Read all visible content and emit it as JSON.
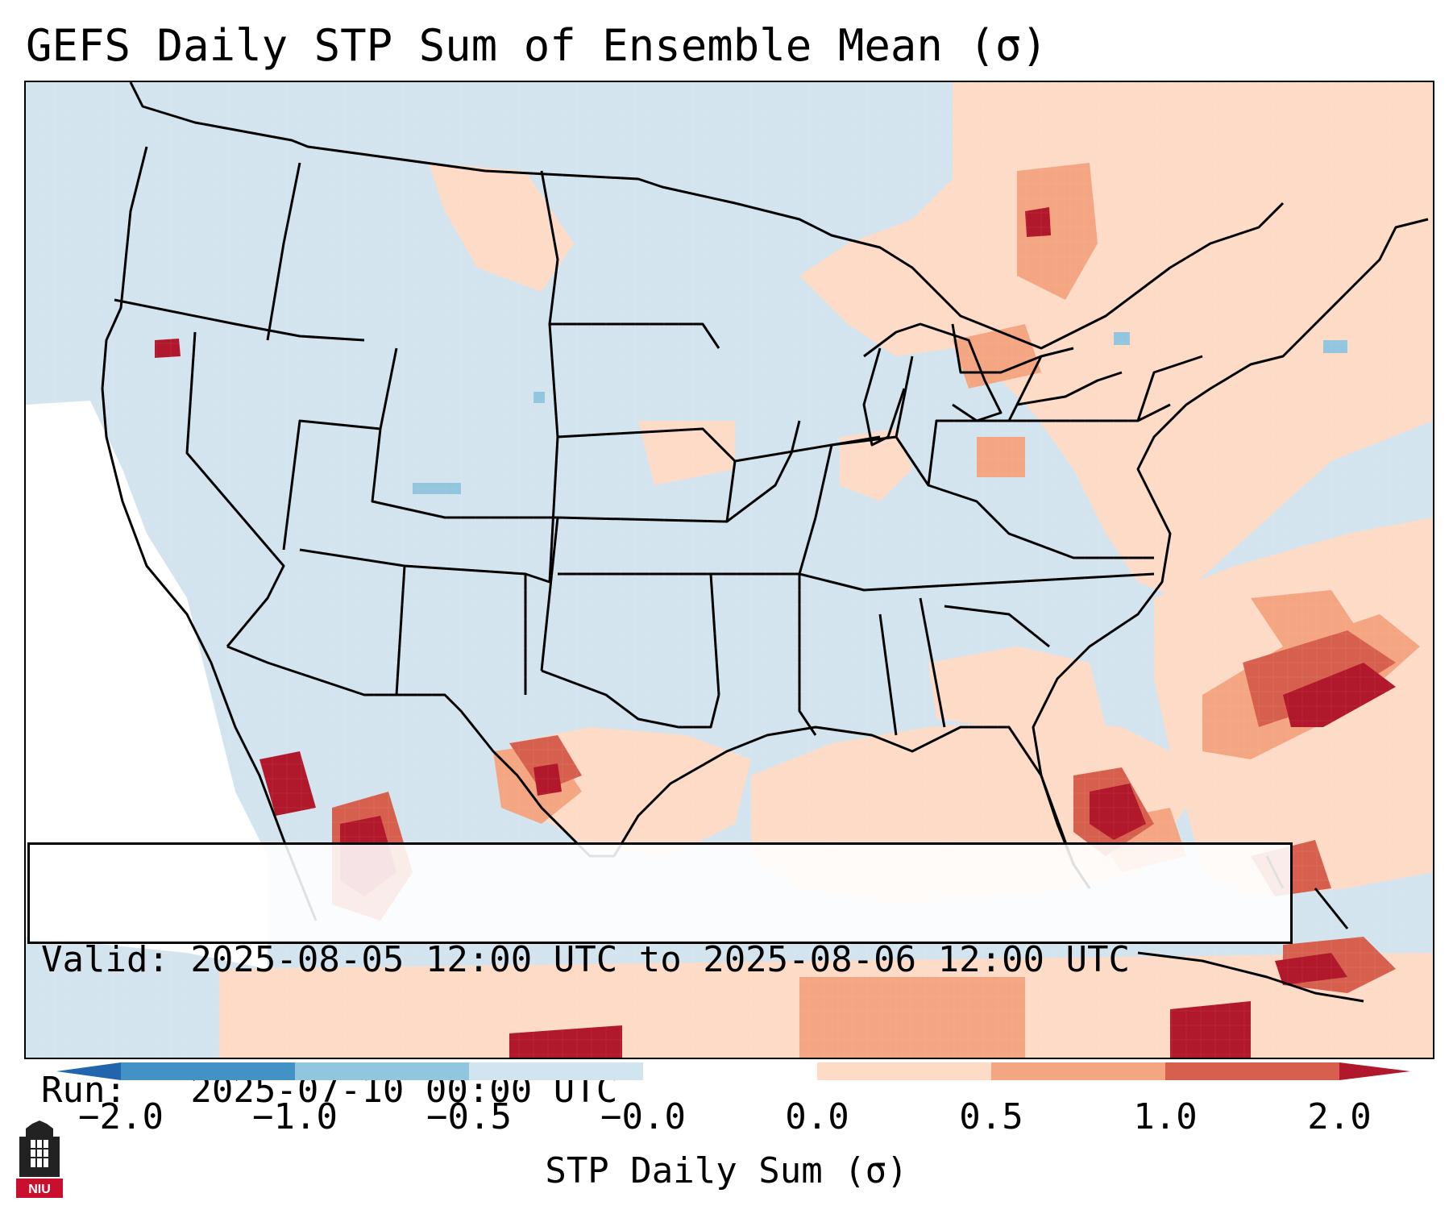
{
  "title": "GEFS Daily STP Sum of Ensemble Mean (σ)",
  "info": {
    "valid_line": "Valid: 2025-08-05 12:00 UTC to 2025-08-06 12:00 UTC",
    "run_line": "Run:   2025-07-10 00:00 UTC"
  },
  "colorbar": {
    "label": "STP Daily Sum (σ)",
    "ticks": [
      "−2.0",
      "−1.0",
      "−0.5",
      "−0.0",
      "0.0",
      "0.5",
      "1.0",
      "2.0"
    ],
    "bins": [
      {
        "from": -2.0,
        "to": -1.0,
        "color": "#4292c6"
      },
      {
        "from": -1.0,
        "to": -0.5,
        "color": "#92c5de"
      },
      {
        "from": -0.5,
        "to": -0.0,
        "color": "#d1e5f0"
      },
      {
        "from": -0.0,
        "to": 0.0,
        "color": "#ffffff"
      },
      {
        "from": 0.0,
        "to": 0.5,
        "color": "#fddbc7"
      },
      {
        "from": 0.5,
        "to": 1.0,
        "color": "#f4a582"
      },
      {
        "from": 1.0,
        "to": 2.0,
        "color": "#d6604d"
      }
    ],
    "under_color": "#2166ac",
    "over_color": "#b2182b"
  },
  "map": {
    "projection": "Lambert Conformal (CONUS)",
    "background_color": "#d3e4ef",
    "border_color": "#000000"
  },
  "logo": {
    "text": "NIU",
    "primary_color": "#c8102e"
  }
}
